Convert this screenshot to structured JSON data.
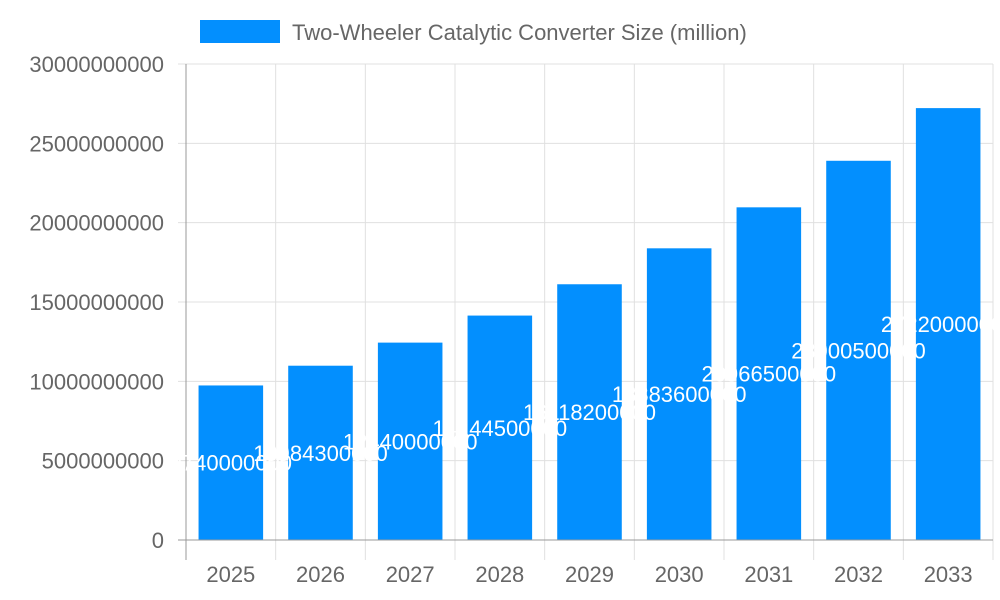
{
  "chart_data": {
    "type": "bar",
    "title": "",
    "xlabel": "",
    "ylabel": "",
    "categories": [
      "2025",
      "2026",
      "2027",
      "2028",
      "2029",
      "2030",
      "2031",
      "2032",
      "2033"
    ],
    "series": [
      {
        "name": "Two-Wheeler Catalytic Converter Size (million)",
        "values": [
          9740000000,
          10984300000,
          12440000000,
          14144500000,
          16118200000,
          18383600000,
          20966500000,
          23900500000,
          27220000000
        ]
      }
    ],
    "ylim": [
      0,
      30000000000
    ],
    "yticks": [
      0,
      5000000000,
      10000000000,
      15000000000,
      20000000000,
      25000000000,
      30000000000
    ],
    "grid": true,
    "legend": "top",
    "data_labels": true,
    "colors": {
      "bar": "#038ffe",
      "grid": "#e0e0e0",
      "axis": "#999999",
      "text": "#666666",
      "label": "#ffffff"
    }
  }
}
